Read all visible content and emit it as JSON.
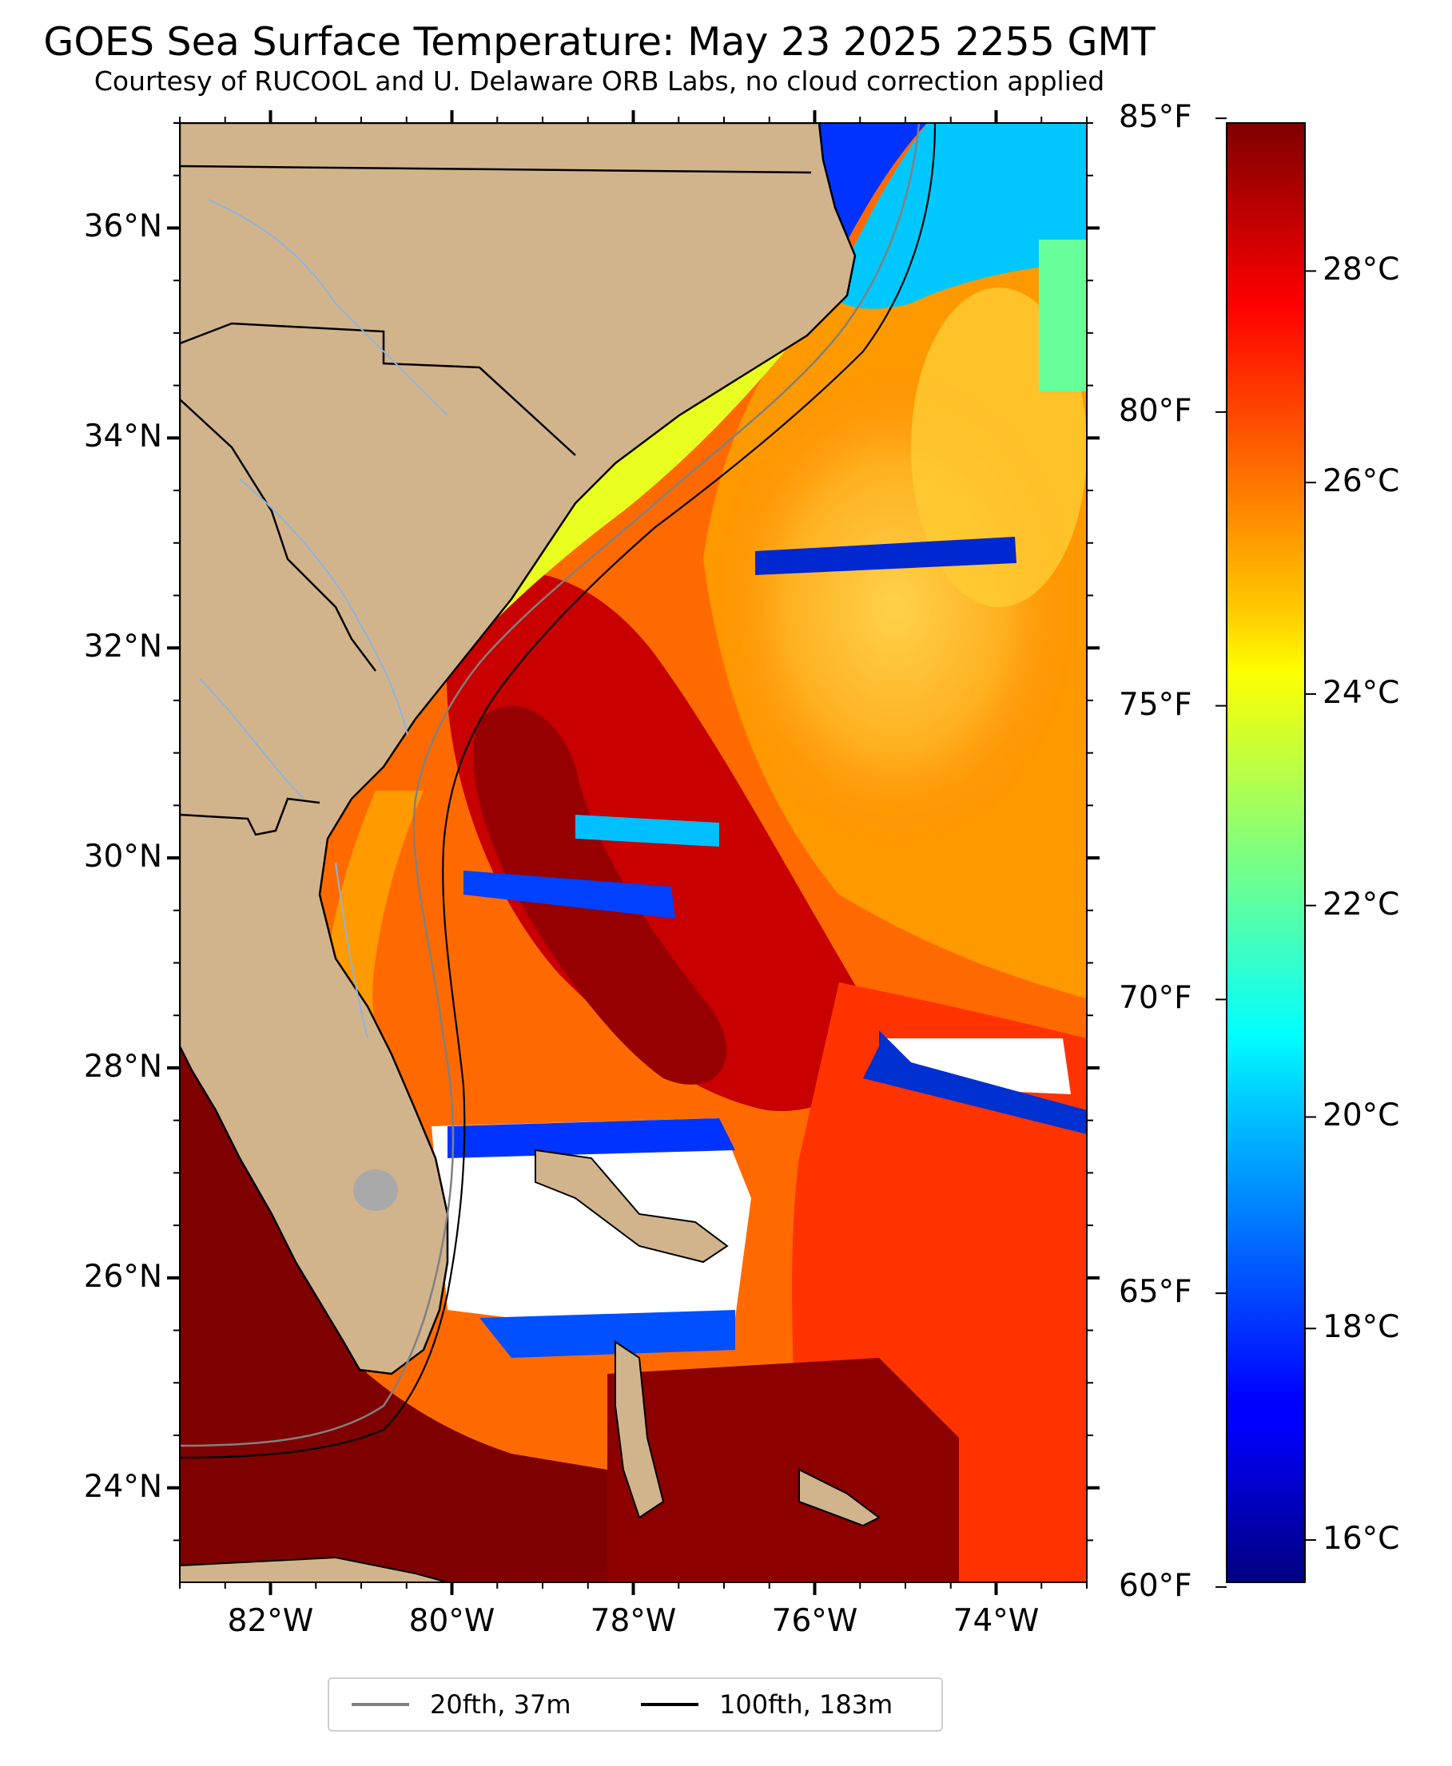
{
  "title": "GOES Sea Surface Temperature: May 23 2025 2255 GMT",
  "subtitle": "Courtesy of RUCOOL and U. Delaware ORB Labs, no cloud correction applied",
  "map": {
    "lon_range": [
      -83.0,
      -73.0
    ],
    "lat_range": [
      23.1,
      37.0
    ],
    "land_color": "#d2b48c",
    "lat_ticks": [
      "36°N",
      "34°N",
      "32°N",
      "30°N",
      "28°N",
      "26°N",
      "24°N"
    ],
    "lat_tick_values": [
      36,
      34,
      32,
      30,
      28,
      26,
      24
    ],
    "lon_ticks": [
      "82°W",
      "80°W",
      "78°W",
      "76°W",
      "74°W"
    ],
    "lon_tick_values": [
      -82,
      -80,
      -78,
      -76,
      -74
    ]
  },
  "colorbar": {
    "colormap": "jet",
    "celsius_range": [
      15.6,
      29.4
    ],
    "fahrenheit_labels": [
      "85°F",
      "80°F",
      "75°F",
      "70°F",
      "65°F",
      "60°F"
    ],
    "fahrenheit_values": [
      85,
      80,
      75,
      70,
      65,
      60
    ],
    "celsius_labels": [
      "28°C",
      "26°C",
      "24°C",
      "22°C",
      "20°C",
      "18°C",
      "16°C"
    ],
    "celsius_values": [
      28,
      26,
      24,
      22,
      20,
      18,
      16
    ]
  },
  "legend": {
    "items": [
      {
        "label": "20fth, 37m",
        "color": "#808080"
      },
      {
        "label": "100fth, 183m",
        "color": "#000000"
      }
    ]
  }
}
